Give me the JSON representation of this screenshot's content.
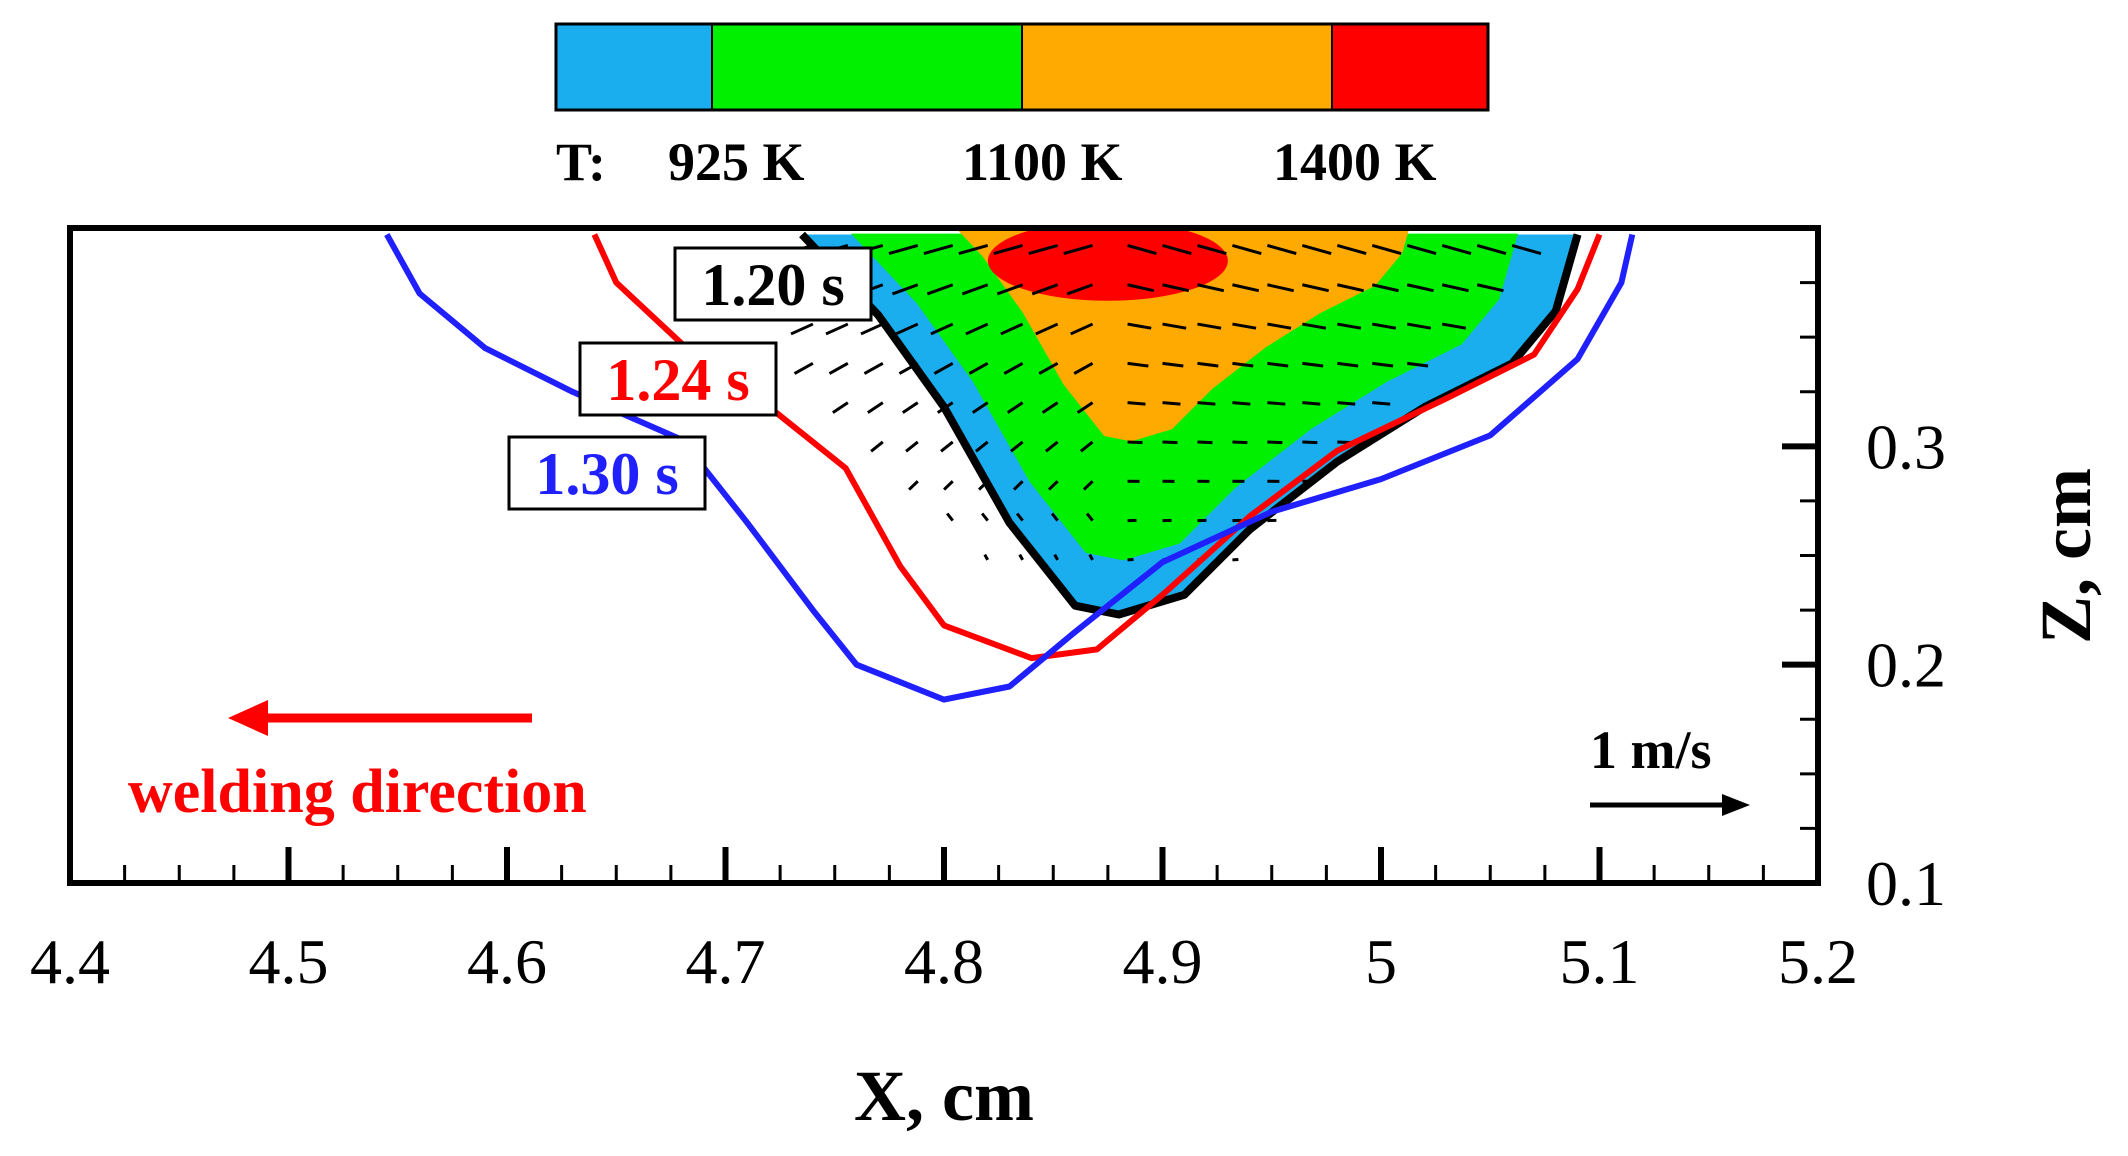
{
  "chart_data": {
    "type": "contour",
    "xlabel": "X, cm",
    "ylabel": "Z, cm",
    "xlim": [
      4.4,
      5.2
    ],
    "ylim": [
      0.1,
      0.4
    ],
    "xticks": [
      "4.4",
      "4.5",
      "4.6",
      "4.7",
      "4.8",
      "4.9",
      "5",
      "5.1",
      "5.2"
    ],
    "yticks": [
      "0.1",
      "0.2",
      "0.3"
    ],
    "colorbar": {
      "prefix": "T:",
      "levels": [
        {
          "label": "925 K",
          "value": 925
        },
        {
          "label": "1100 K",
          "value": 1100
        },
        {
          "label": "1400 K",
          "value": 1400
        }
      ],
      "colors": [
        "#1aaeef",
        "#00f000",
        "#ffaa00",
        "#ff0000"
      ]
    },
    "pool_profiles": [
      {
        "label": "1.20 s",
        "color": "#000000",
        "points": [
          [
            4.735,
            0.397
          ],
          [
            4.77,
            0.36
          ],
          [
            4.8,
            0.318
          ],
          [
            4.83,
            0.265
          ],
          [
            4.86,
            0.227
          ],
          [
            4.88,
            0.223
          ],
          [
            4.91,
            0.232
          ],
          [
            4.94,
            0.262
          ],
          [
            4.98,
            0.293
          ],
          [
            5.02,
            0.318
          ],
          [
            5.06,
            0.338
          ],
          [
            5.08,
            0.362
          ],
          [
            5.09,
            0.397
          ]
        ]
      },
      {
        "label": "1.24 s",
        "color": "#ff0000",
        "points": [
          [
            4.64,
            0.397
          ],
          [
            4.65,
            0.375
          ],
          [
            4.68,
            0.347
          ],
          [
            4.72,
            0.318
          ],
          [
            4.755,
            0.29
          ],
          [
            4.78,
            0.245
          ],
          [
            4.8,
            0.218
          ],
          [
            4.84,
            0.203
          ],
          [
            4.87,
            0.207
          ],
          [
            4.9,
            0.232
          ],
          [
            4.94,
            0.268
          ],
          [
            4.98,
            0.298
          ],
          [
            5.03,
            0.322
          ],
          [
            5.07,
            0.342
          ],
          [
            5.09,
            0.372
          ],
          [
            5.1,
            0.397
          ]
        ]
      },
      {
        "label": "1.30 s",
        "color": "#2020ff",
        "points": [
          [
            4.545,
            0.397
          ],
          [
            4.56,
            0.37
          ],
          [
            4.59,
            0.345
          ],
          [
            4.63,
            0.325
          ],
          [
            4.68,
            0.303
          ],
          [
            4.71,
            0.265
          ],
          [
            4.74,
            0.225
          ],
          [
            4.76,
            0.2
          ],
          [
            4.8,
            0.184
          ],
          [
            4.83,
            0.19
          ],
          [
            4.86,
            0.215
          ],
          [
            4.9,
            0.247
          ],
          [
            4.95,
            0.27
          ],
          [
            5.0,
            0.285
          ],
          [
            5.05,
            0.305
          ],
          [
            5.09,
            0.34
          ],
          [
            5.11,
            0.375
          ],
          [
            5.115,
            0.397
          ]
        ]
      }
    ],
    "annotations": {
      "welding_direction": "welding direction",
      "velocity_scale": "1 m/s"
    }
  }
}
